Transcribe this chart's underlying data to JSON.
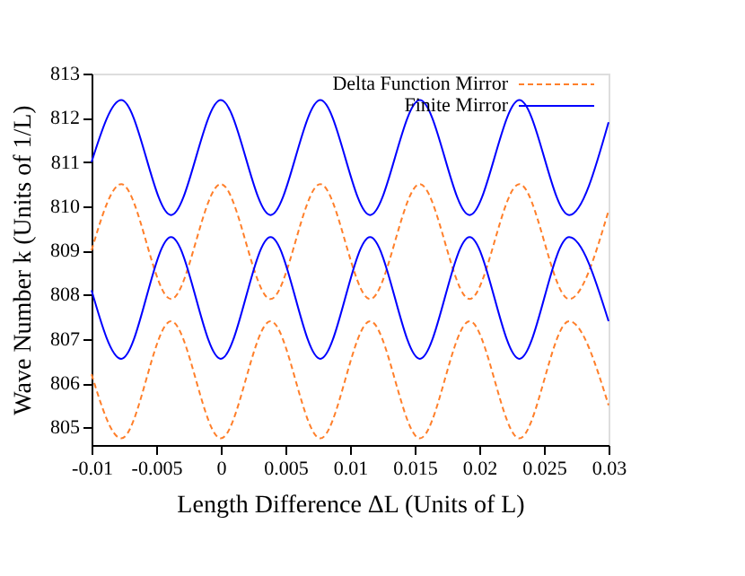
{
  "chart_data": {
    "type": "line",
    "xlabel": "Length Difference  ΔL    (Units of L)",
    "ylabel": "Wave Number  k    (Units of 1/L)",
    "x": [
      -0.01,
      -0.0077,
      -0.00385,
      0,
      0.00385,
      0.0077,
      0.01155,
      0.0154,
      0.01925,
      0.0231,
      0.02695,
      0.03
    ],
    "series": [
      {
        "name": "Delta Function Mirror",
        "color": "#ff7f2a",
        "line_style": "dashed",
        "values": [
          809.0,
          810.5,
          807.9,
          810.5,
          807.9,
          810.5,
          807.9,
          810.5,
          807.9,
          810.5,
          807.9,
          809.9
        ]
      },
      {
        "color": "#ff7f2a",
        "line_style": "dashed",
        "values": [
          806.2,
          804.75,
          807.4,
          804.75,
          807.4,
          804.75,
          807.4,
          804.75,
          807.4,
          804.75,
          807.4,
          805.5
        ]
      },
      {
        "name": "Finite Mirror",
        "color": "#0000ff",
        "line_style": "solid",
        "values": [
          811.0,
          812.4,
          809.8,
          812.4,
          809.8,
          812.4,
          809.8,
          812.4,
          809.8,
          812.4,
          809.8,
          811.9
        ]
      },
      {
        "color": "#0000ff",
        "line_style": "solid",
        "values": [
          808.1,
          806.55,
          809.3,
          806.55,
          809.3,
          806.55,
          809.3,
          806.55,
          809.3,
          806.55,
          809.3,
          807.4
        ]
      }
    ],
    "xlim": [
      -0.01,
      0.03
    ],
    "xticks": [
      -0.01,
      -0.005,
      0,
      0.005,
      0.01,
      0.015,
      0.02,
      0.025,
      0.03
    ],
    "ylim": [
      804.6,
      813
    ],
    "yticks": [
      805,
      806,
      807,
      808,
      809,
      810,
      811,
      812,
      813
    ],
    "grid": false,
    "legend": "top right"
  }
}
